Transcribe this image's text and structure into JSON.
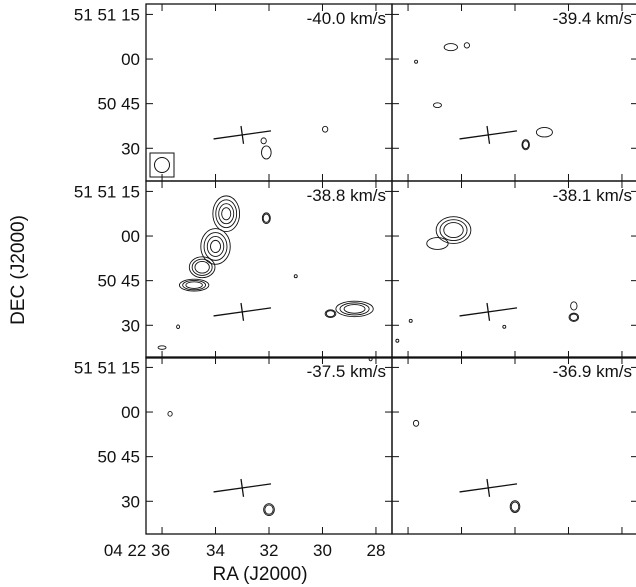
{
  "chart_data": {
    "type": "contour-channel-maps",
    "xlabel": "RA (J2000)",
    "ylabel": "DEC (J2000)",
    "x_tick_labels": [
      "04 22 36",
      "34",
      "32",
      "30",
      "28"
    ],
    "x_tick_values_sec": [
      36,
      34,
      32,
      30,
      28
    ],
    "y_tick_labels": [
      "51 51 15",
      "00",
      "50 45",
      "30"
    ],
    "y_tick_values_arcsec": [
      75,
      60,
      45,
      30
    ],
    "xlim_sec": [
      36.6,
      27.4
    ],
    "ylim_arcsec": [
      19.0,
      78.5
    ],
    "source_marker": {
      "ra_sec": 33.0,
      "dec_arcsec": 34.5
    },
    "beam": "circle",
    "panels": [
      {
        "label": "-40.0 km/s",
        "velocity": -40.0,
        "contours": [
          {
            "ra": 29.9,
            "dec": 36.4,
            "rx": 0.1,
            "ry": 1.0,
            "levels": 1
          },
          {
            "ra": 32.1,
            "dec": 28.6,
            "rx": 0.18,
            "ry": 2.2,
            "levels": 1
          },
          {
            "ra": 32.2,
            "dec": 32.5,
            "rx": 0.1,
            "ry": 1.0,
            "levels": 1
          }
        ]
      },
      {
        "label": "-39.4 km/s",
        "velocity": -39.4,
        "contours": [
          {
            "ra": 34.4,
            "dec": 64.0,
            "rx": 0.25,
            "ry": 1.2,
            "levels": 1
          },
          {
            "ra": 33.8,
            "dec": 64.6,
            "rx": 0.1,
            "ry": 0.9,
            "levels": 1
          },
          {
            "ra": 35.7,
            "dec": 59.1,
            "rx": 0.05,
            "ry": 0.5,
            "levels": 1
          },
          {
            "ra": 34.9,
            "dec": 44.5,
            "rx": 0.15,
            "ry": 0.8,
            "levels": 1
          },
          {
            "ra": 30.9,
            "dec": 35.4,
            "rx": 0.3,
            "ry": 1.6,
            "levels": 1
          },
          {
            "ra": 31.6,
            "dec": 31.2,
            "rx": 0.14,
            "ry": 1.7,
            "levels": 2
          }
        ]
      },
      {
        "label": "-38.8 km/s",
        "velocity": -38.8,
        "contours": [
          {
            "ra": 33.6,
            "dec": 67.5,
            "rx": 0.5,
            "ry": 6.0,
            "levels": 4
          },
          {
            "ra": 34.0,
            "dec": 56.5,
            "rx": 0.55,
            "ry": 6.0,
            "levels": 4
          },
          {
            "ra": 34.5,
            "dec": 49.5,
            "rx": 0.48,
            "ry": 3.5,
            "levels": 3
          },
          {
            "ra": 34.8,
            "dec": 43.5,
            "rx": 0.55,
            "ry": 2.0,
            "levels": 3
          },
          {
            "ra": 32.1,
            "dec": 66.0,
            "rx": 0.15,
            "ry": 1.8,
            "levels": 2
          },
          {
            "ra": 28.8,
            "dec": 35.5,
            "rx": 0.7,
            "ry": 2.6,
            "levels": 3
          },
          {
            "ra": 29.7,
            "dec": 33.9,
            "rx": 0.2,
            "ry": 1.3,
            "levels": 2
          },
          {
            "ra": 35.4,
            "dec": 29.5,
            "rx": 0.05,
            "ry": 0.6,
            "levels": 1
          },
          {
            "ra": 36.0,
            "dec": 22.5,
            "rx": 0.15,
            "ry": 0.6,
            "levels": 1
          },
          {
            "ra": 31.0,
            "dec": 46.5,
            "rx": 0.03,
            "ry": 0.4,
            "levels": 1
          }
        ]
      },
      {
        "label": "-38.1 km/s",
        "velocity": -38.1,
        "contours": [
          {
            "ra": 34.3,
            "dec": 62.0,
            "rx": 0.65,
            "ry": 4.5,
            "levels": 3
          },
          {
            "ra": 34.9,
            "dec": 57.5,
            "rx": 0.4,
            "ry": 2.0,
            "levels": 1
          },
          {
            "ra": 29.8,
            "dec": 36.5,
            "rx": 0.12,
            "ry": 1.4,
            "levels": 1
          },
          {
            "ra": 29.8,
            "dec": 32.7,
            "rx": 0.18,
            "ry": 1.4,
            "levels": 2
          },
          {
            "ra": 35.9,
            "dec": 31.5,
            "rx": 0.05,
            "ry": 0.5,
            "levels": 1
          },
          {
            "ra": 32.4,
            "dec": 29.5,
            "rx": 0.05,
            "ry": 0.5,
            "levels": 1
          },
          {
            "ra": 36.4,
            "dec": 24.8,
            "rx": 0.05,
            "ry": 0.5,
            "levels": 1
          }
        ]
      },
      {
        "label": "-37.5 km/s",
        "velocity": -37.5,
        "contours": [
          {
            "ra": 35.7,
            "dec": 59.4,
            "rx": 0.08,
            "ry": 0.8,
            "levels": 1
          },
          {
            "ra": 28.2,
            "dec": 77.8,
            "rx": 0.05,
            "ry": 0.6,
            "levels": 1
          },
          {
            "ra": 32.0,
            "dec": 27.2,
            "rx": 0.2,
            "ry": 2.0,
            "levels": 2
          }
        ]
      },
      {
        "label": "-36.9 km/s",
        "velocity": -36.9,
        "contours": [
          {
            "ra": 35.7,
            "dec": 56.2,
            "rx": 0.1,
            "ry": 1.0,
            "levels": 1
          },
          {
            "ra": 32.0,
            "dec": 28.2,
            "rx": 0.18,
            "ry": 2.0,
            "levels": 2
          }
        ]
      }
    ]
  }
}
